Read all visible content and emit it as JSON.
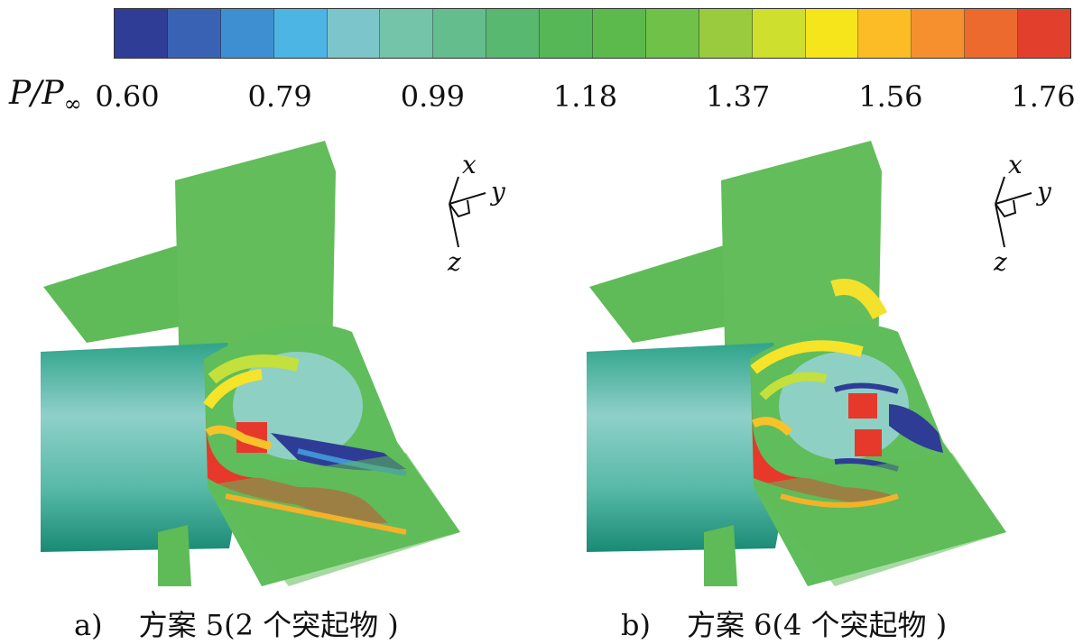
{
  "colorbar": {
    "symbol_main": "P/P",
    "symbol_sub": "∞",
    "ticks": [
      "0.60",
      "0.79",
      "0.99",
      "1.18",
      "1.37",
      "1.56",
      "1.76"
    ],
    "colors": [
      "#2f3d97",
      "#3a62b4",
      "#3e8fd2",
      "#4db5e3",
      "#7cc6cb",
      "#73c4a9",
      "#63bd8c",
      "#59b86f",
      "#56b757",
      "#5cba4c",
      "#6fc148",
      "#9acb3f",
      "#cfdf2e",
      "#f7e51c",
      "#fbbc25",
      "#f68f2e",
      "#ec6a2d",
      "#e33f2d"
    ]
  },
  "coordinate_axes": {
    "x": "x",
    "y": "y",
    "z": "z"
  },
  "captions": {
    "a": {
      "letter": "a)",
      "text": "方案 5(2 个突起物 )"
    },
    "b": {
      "letter": "b)",
      "text": "方案 6(4 个突起物 )"
    }
  }
}
